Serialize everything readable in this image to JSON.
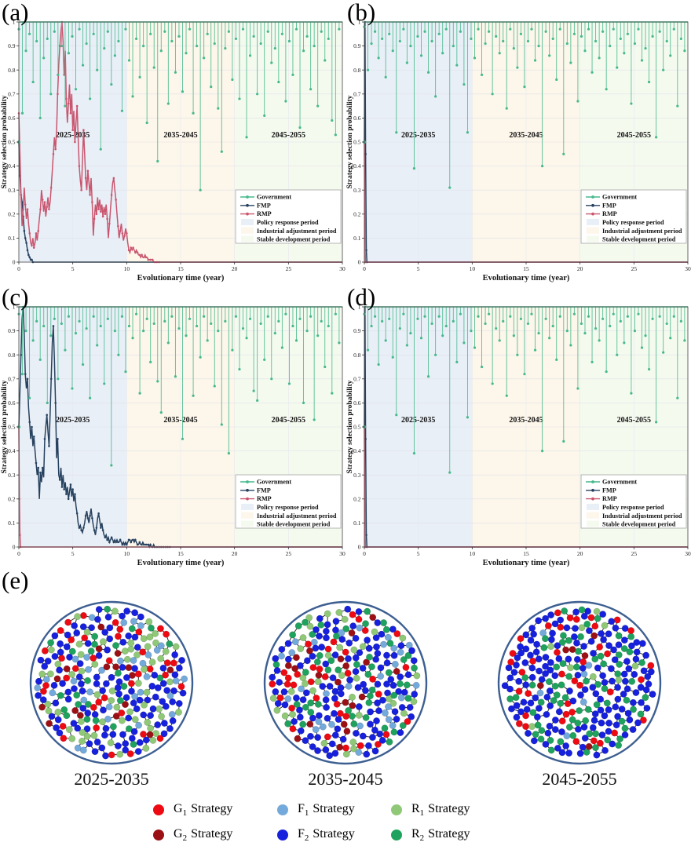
{
  "figure": {
    "panel_labels": [
      "(a)",
      "(b)",
      "(c)",
      "(d)",
      "(e)"
    ]
  },
  "axes": {
    "xlabel": "Evolutionary time (year)",
    "ylabel": "Strategy selection probability",
    "xlim": [
      0,
      30
    ],
    "ylim": [
      0,
      1
    ],
    "x_ticks": [
      0,
      5,
      10,
      15,
      20,
      25,
      30
    ],
    "y_ticks": [
      0,
      0.1,
      0.2,
      0.3,
      0.4,
      0.5,
      0.6,
      0.7,
      0.8,
      0.9,
      1
    ],
    "grid": true
  },
  "periods": [
    {
      "label": "Policy response period",
      "years": "2025-2035",
      "xrange": [
        0,
        10
      ],
      "band_color": "#e9eff7"
    },
    {
      "label": "Industrial adjustment period",
      "years": "2035-2045",
      "xrange": [
        10,
        20
      ],
      "band_color": "#fdf6ea"
    },
    {
      "label": "Stable development period",
      "years": "2045-2055",
      "xrange": [
        20,
        30
      ],
      "band_color": "#f5faef"
    }
  ],
  "series_legend": [
    {
      "name": "Government",
      "color": "#46b98c"
    },
    {
      "name": "FMP",
      "color": "#27425f"
    },
    {
      "name": "RMP",
      "color": "#c9566f"
    }
  ],
  "chart_data": [
    {
      "type": "line",
      "panel": "(a)",
      "government": {
        "start": [
          0,
          0.5
        ],
        "x_step": 0.33,
        "depths": [
          0.97,
          0.62,
          0.88,
          0.95,
          0.75,
          0.92,
          0.6,
          0.85,
          0.93,
          0.7,
          0.96,
          0.78,
          0.9,
          0.65,
          0.87,
          0.94,
          0.72,
          0.97,
          0.82,
          0.91,
          0.68,
          0.95,
          0.8,
          0.47,
          0.89,
          0.96,
          0.74,
          0.86,
          0.92,
          0.63,
          0.97,
          0.84,
          0.69,
          0.93,
          0.77,
          0.9,
          0.58,
          0.95,
          0.81,
          0.42,
          0.88,
          0.96,
          0.66,
          0.92,
          0.79,
          0.94,
          0.71,
          0.87,
          0.97,
          0.62,
          0.9,
          0.3,
          0.85,
          0.95,
          0.73,
          0.91,
          0.64,
          0.46,
          0.89,
          0.96,
          0.76,
          0.93,
          0.68,
          0.97,
          0.52,
          0.86,
          0.94,
          0.7,
          0.91,
          0.61,
          0.96,
          0.83,
          0.89,
          0.75,
          0.95,
          0.67,
          0.92,
          0.78,
          0.97,
          0.56,
          0.88,
          0.94,
          0.72,
          0.9,
          0.65,
          0.96,
          0.84,
          0.93,
          0.59,
          0.53,
          0.97
        ]
      },
      "fmp": {
        "x_step": 0.1,
        "extend": true,
        "values": [
          0.5,
          0.36,
          0.28,
          0.25,
          0.19,
          0.13,
          0.1,
          0.08,
          0.05,
          0.03,
          0.02,
          0.01,
          0.01,
          0.0
        ]
      },
      "rmp": {
        "x_step": 0.1,
        "extend": true,
        "values": [
          0.62,
          0.45,
          0.28,
          0.15,
          0.22,
          0.31,
          0.24,
          0.18,
          0.22,
          0.16,
          0.12,
          0.08,
          0.07,
          0.1,
          0.06,
          0.08,
          0.12,
          0.09,
          0.13,
          0.18,
          0.22,
          0.3,
          0.26,
          0.21,
          0.25,
          0.19,
          0.23,
          0.27,
          0.22,
          0.25,
          0.31,
          0.38,
          0.45,
          0.52,
          0.47,
          0.55,
          0.7,
          0.82,
          0.9,
          0.96,
          1.0,
          0.92,
          0.78,
          0.88,
          0.68,
          0.58,
          0.66,
          0.74,
          0.62,
          0.7,
          0.55,
          0.63,
          0.5,
          0.58,
          0.65,
          0.52,
          0.4,
          0.34,
          0.3,
          0.42,
          0.55,
          0.45,
          0.35,
          0.3,
          0.38,
          0.33,
          0.28,
          0.35,
          0.25,
          0.11,
          0.18,
          0.24,
          0.2,
          0.27,
          0.22,
          0.26,
          0.21,
          0.24,
          0.19,
          0.23,
          0.2,
          0.24,
          0.18,
          0.1,
          0.16,
          0.22,
          0.28,
          0.33,
          0.35,
          0.3,
          0.26,
          0.2,
          0.15,
          0.1,
          0.13,
          0.16,
          0.12,
          0.09,
          0.11,
          0.14,
          0.12,
          0.08,
          0.05,
          0.04,
          0.06,
          0.05,
          0.06,
          0.05,
          0.04,
          0.05,
          0.04,
          0.03,
          0.03,
          0.02,
          0.03,
          0.02,
          0.02,
          0.03,
          0.02,
          0.02,
          0.01,
          0.01,
          0.01,
          0.01,
          0.01,
          0.0,
          0.0,
          0.0,
          0.0,
          0.0,
          0.0
        ]
      }
    },
    {
      "type": "line",
      "panel": "(b)",
      "government": {
        "start": [
          0,
          0.5
        ],
        "x_step": 0.33,
        "depths": [
          0.98,
          0.8,
          0.91,
          0.96,
          0.85,
          0.93,
          0.77,
          0.95,
          0.88,
          0.54,
          0.92,
          0.97,
          0.83,
          0.9,
          0.39,
          0.94,
          0.86,
          0.96,
          0.79,
          0.92,
          0.69,
          0.95,
          0.87,
          0.97,
          0.31,
          0.9,
          0.82,
          0.96,
          0.74,
          0.54,
          0.93,
          0.85,
          0.97,
          0.78,
          0.91,
          0.96,
          0.7,
          0.94,
          0.87,
          0.92,
          0.64,
          0.97,
          0.89,
          0.81,
          0.95,
          0.73,
          0.92,
          0.97,
          0.84,
          0.9,
          0.4,
          0.96,
          0.86,
          0.93,
          0.76,
          0.97,
          0.45,
          0.91,
          0.83,
          0.95,
          0.67,
          0.94,
          0.88,
          0.97,
          0.79,
          0.92,
          0.85,
          0.96,
          0.72,
          0.9,
          0.97,
          0.81,
          0.93,
          0.87,
          0.95,
          0.66,
          0.91,
          0.97,
          0.84,
          0.89,
          0.75,
          0.94,
          0.52,
          0.96,
          0.8,
          0.92,
          0.86,
          0.97,
          0.65,
          0.93,
          0.88
        ]
      },
      "fmp": {
        "x_step": 0.06,
        "extend": true,
        "values": [
          0.5,
          1.0,
          0.45,
          0.05,
          0.0
        ]
      },
      "rmp": {
        "x_step": 0.05,
        "extend": true,
        "values": [
          0.5,
          0.1,
          0.0
        ]
      }
    },
    {
      "type": "line",
      "panel": "(c)",
      "government": {
        "start": [
          0,
          0.5
        ],
        "x_step": 0.33,
        "depths": [
          0.97,
          0.72,
          0.9,
          0.62,
          0.86,
          0.94,
          0.78,
          0.92,
          0.6,
          0.88,
          0.95,
          0.7,
          0.93,
          0.82,
          0.96,
          0.66,
          0.89,
          0.94,
          0.76,
          0.91,
          0.62,
          0.96,
          0.84,
          0.92,
          0.68,
          0.95,
          0.34,
          0.9,
          0.8,
          0.96,
          0.73,
          0.92,
          0.87,
          0.97,
          0.64,
          0.9,
          0.95,
          0.77,
          0.93,
          0.69,
          0.56,
          0.94,
          0.85,
          0.96,
          0.71,
          0.91,
          0.45,
          0.88,
          0.95,
          0.63,
          0.92,
          0.79,
          0.96,
          0.86,
          0.93,
          0.67,
          0.9,
          0.51,
          0.94,
          0.39,
          0.82,
          0.96,
          0.74,
          0.91,
          0.87,
          0.95,
          0.65,
          0.61,
          0.93,
          0.78,
          0.96,
          0.7,
          0.89,
          0.94,
          0.83,
          0.97,
          0.68,
          0.92,
          0.86,
          0.95,
          0.6,
          0.9,
          0.96,
          0.53,
          0.88,
          0.94,
          0.75,
          0.92,
          0.64,
          0.97,
          0.85
        ]
      },
      "fmp": {
        "x_step": 0.1,
        "extend": true,
        "values": [
          0.5,
          0.65,
          0.8,
          0.95,
          1.0,
          0.88,
          0.72,
          0.66,
          0.7,
          0.58,
          0.52,
          0.45,
          0.5,
          0.42,
          0.46,
          0.4,
          0.35,
          0.3,
          0.33,
          0.2,
          0.31,
          0.27,
          0.33,
          0.29,
          0.45,
          0.5,
          0.55,
          0.48,
          0.42,
          0.55,
          0.7,
          0.85,
          0.92,
          0.78,
          0.6,
          0.37,
          0.45,
          0.3,
          0.28,
          0.33,
          0.25,
          0.3,
          0.24,
          0.27,
          0.22,
          0.25,
          0.2,
          0.23,
          0.26,
          0.21,
          0.24,
          0.19,
          0.22,
          0.17,
          0.14,
          0.1,
          0.08,
          0.09,
          0.07,
          0.06,
          0.08,
          0.1,
          0.13,
          0.15,
          0.12,
          0.1,
          0.13,
          0.16,
          0.12,
          0.09,
          0.07,
          0.05,
          0.08,
          0.12,
          0.14,
          0.11,
          0.08,
          0.1,
          0.07,
          0.05,
          0.04,
          0.05,
          0.03,
          0.04,
          0.02,
          0.03,
          0.04,
          0.03,
          0.02,
          0.03,
          0.02,
          0.03,
          0.02,
          0.02,
          0.03,
          0.02,
          0.01,
          0.02,
          0.01,
          0.02,
          0.01,
          0.02,
          0.03,
          0.03,
          0.02,
          0.03,
          0.03,
          0.02,
          0.03,
          0.02,
          0.01,
          0.01,
          0.02,
          0.01,
          0.01,
          0.02,
          0.01,
          0.01,
          0.01,
          0.01,
          0.01,
          0.0,
          0.01,
          0.0,
          0.0,
          0.01,
          0.0,
          0.0,
          0.0,
          0.0,
          0.0,
          0.0,
          0.0,
          0.0,
          0.0,
          0.0,
          0.0,
          0.0,
          0.0,
          0.0,
          0.0
        ]
      },
      "rmp": {
        "x_step": 0.05,
        "extend": true,
        "values": [
          0.5,
          0.2,
          0.05,
          0.0
        ]
      }
    },
    {
      "type": "line",
      "panel": "(d)",
      "government": {
        "start": [
          0,
          0.5
        ],
        "x_step": 0.33,
        "depths": [
          0.97,
          0.82,
          0.92,
          0.96,
          0.76,
          0.94,
          0.86,
          0.95,
          0.79,
          0.55,
          0.91,
          0.97,
          0.84,
          0.89,
          0.39,
          0.95,
          0.87,
          0.96,
          0.71,
          0.93,
          0.8,
          0.96,
          0.88,
          0.92,
          0.31,
          0.94,
          0.77,
          0.97,
          0.85,
          0.54,
          0.9,
          0.83,
          0.96,
          0.75,
          0.93,
          0.97,
          0.68,
          0.91,
          0.86,
          0.94,
          0.63,
          0.96,
          0.88,
          0.8,
          0.95,
          0.72,
          0.93,
          0.97,
          0.82,
          0.89,
          0.4,
          0.95,
          0.87,
          0.92,
          0.78,
          0.96,
          0.44,
          0.9,
          0.84,
          0.97,
          0.66,
          0.93,
          0.89,
          0.96,
          0.77,
          0.91,
          0.86,
          0.95,
          0.73,
          0.92,
          0.97,
          0.8,
          0.94,
          0.85,
          0.96,
          0.64,
          0.9,
          0.97,
          0.83,
          0.88,
          0.74,
          0.95,
          0.52,
          0.96,
          0.81,
          0.93,
          0.87,
          0.96,
          0.62,
          0.94,
          0.86
        ]
      },
      "fmp": {
        "x_step": 0.06,
        "extend": true,
        "values": [
          0.5,
          1.0,
          0.45,
          0.05,
          0.0
        ]
      },
      "rmp": {
        "x_step": 0.05,
        "extend": true,
        "values": [
          0.5,
          0.1,
          0.0
        ]
      }
    }
  ],
  "networks": {
    "node_colors": {
      "G1": "#ee0a12",
      "G2": "#9b1015",
      "F1": "#74a9dc",
      "F2": "#1620dd",
      "R1": "#8fc876",
      "R2": "#1ea25d"
    },
    "ring_color": "#3d5f91",
    "edge_color": "#1a1a1a",
    "items": [
      {
        "caption": "2025-2035",
        "node_count": 290,
        "distribution": {
          "G1": 0.13,
          "G2": 0.06,
          "F1": 0.11,
          "F2": 0.4,
          "R1": 0.21,
          "R2": 0.09
        }
      },
      {
        "caption": "2035-2045",
        "node_count": 290,
        "distribution": {
          "G1": 0.12,
          "G2": 0.07,
          "F1": 0.1,
          "F2": 0.42,
          "R1": 0.12,
          "R2": 0.17
        }
      },
      {
        "caption": "2045-2055",
        "node_count": 290,
        "distribution": {
          "G1": 0.13,
          "G2": 0.02,
          "F1": 0.02,
          "F2": 0.55,
          "R1": 0.03,
          "R2": 0.25
        }
      }
    ]
  },
  "strategy_legend": {
    "items": [
      {
        "prefix": "G",
        "sub": "1",
        "word": "Strategy",
        "color": "#ee0a12"
      },
      {
        "prefix": "F",
        "sub": "1",
        "word": "Strategy",
        "color": "#74a9dc"
      },
      {
        "prefix": "R",
        "sub": "1",
        "word": "Strategy",
        "color": "#8fc876"
      },
      {
        "prefix": "G",
        "sub": "2",
        "word": "Strategy",
        "color": "#9b1015"
      },
      {
        "prefix": "F",
        "sub": "2",
        "word": "Strategy",
        "color": "#1620dd"
      },
      {
        "prefix": "R",
        "sub": "2",
        "word": "Strategy",
        "color": "#1ea25d"
      }
    ]
  }
}
